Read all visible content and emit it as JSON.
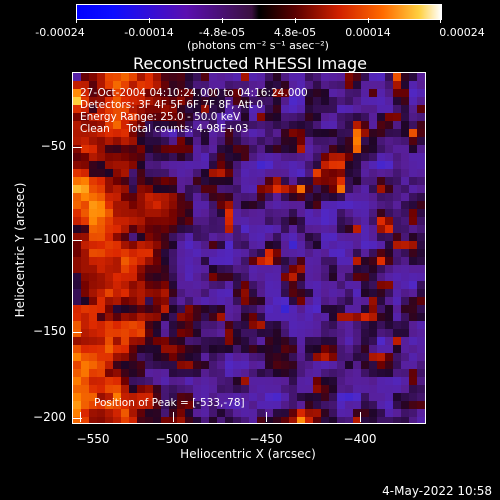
{
  "colorbar": {
    "ticks": [
      "-0.00024",
      "-0.00014",
      "-4.8e-05",
      "4.8e-05",
      "0.00014",
      "0.00024"
    ],
    "units": "(photons cm⁻² s⁻¹ asec⁻²)",
    "colors": [
      "#0000ff",
      "#5a0fb0",
      "#000000",
      "#d02000",
      "#ffd040",
      "#ffffff"
    ]
  },
  "title": "Reconstructed RHESSI Image",
  "info": {
    "time": "27-Oct-2004 04:10:24.000 to 04:16:24.000",
    "detectors": "Detectors: 3F 4F 5F 6F 7F 8F, Att 0",
    "energy": "Energy Range: 25.0 - 50.0 keV",
    "method": "Clean     Total counts: 4.98E+03"
  },
  "peak": "Position of Peak = [-533,-78]",
  "axes": {
    "xlabel": "Heliocentric X (arcsec)",
    "ylabel": "Heliocentric Y (arcsec)",
    "xticks": [
      "−550",
      "−500",
      "−450",
      "−400"
    ],
    "yticks": [
      "−50",
      "−100",
      "−150",
      "−200"
    ]
  },
  "datestamp": "4-May-2022 10:58"
}
